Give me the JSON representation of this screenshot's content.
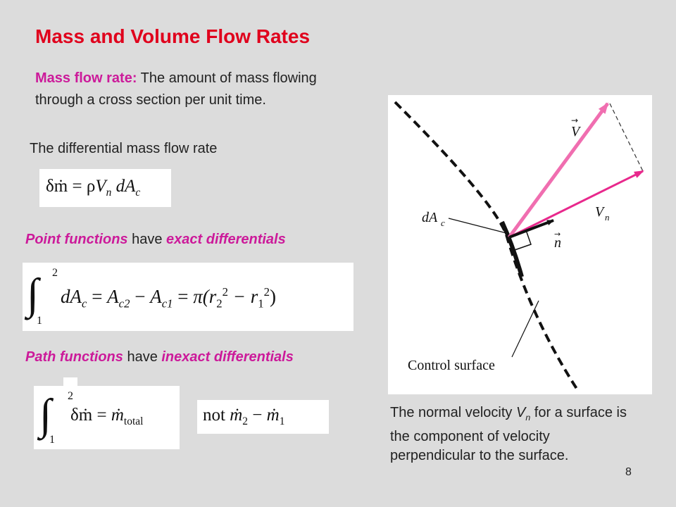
{
  "slide": {
    "title": "Mass and Volume Flow Rates",
    "intro_term": "Mass flow rate:",
    "intro_line1_rest": " The amount of mass flowing",
    "intro_line2": "through a cross section per unit time.",
    "differential_label": "The differential mass flow rate",
    "point_term1": "Point functions",
    "point_mid": " have ",
    "point_term2": "exact differentials",
    "path_term1": "Path functions",
    "path_mid": " have ",
    "path_term2": "inexact differentials",
    "note_part1": "The normal velocity ",
    "note_sym": "V",
    "note_sub": "n",
    "note_part2": " for a surface is the component of velocity perpendicular to the surface.",
    "page_number": "8"
  },
  "equations": {
    "eq1_lhs": "δṁ",
    "eq1_eq": "=",
    "eq1_rho": "ρ",
    "eq1_V": "V",
    "eq1_Vsub": "n",
    "eq1_dA": "dA",
    "eq1_dAsub": "c",
    "eq2_lower": "1",
    "eq2_upper": "2",
    "eq2_dA": "dA",
    "eq2_dAsub": "c",
    "eq2_eq1": "=",
    "eq2_A1": "A",
    "eq2_A1sub": "c2",
    "eq2_minus": "−",
    "eq2_A2": "A",
    "eq2_A2sub": "c1",
    "eq2_eq2": "=",
    "eq2_pi": "π(r",
    "eq2_r2sub": "2",
    "eq2_r2sup": "2",
    "eq2_minus2": " − r",
    "eq2_r1sub": "1",
    "eq2_r1sup": "2",
    "eq2_close": ")",
    "eq3_lower": "1",
    "eq3_upper": "2",
    "eq3_lhs": "δṁ",
    "eq3_eq": "=",
    "eq3_mdot": "ṁ",
    "eq3_sub": "total",
    "eq4_not": "not",
    "eq4_m2": "ṁ",
    "eq4_m2sub": "2",
    "eq4_minus": "−",
    "eq4_m1": "ṁ",
    "eq4_m1sub": "1"
  },
  "figure": {
    "label_V": "V",
    "label_Vn": "V",
    "label_Vn_sub": "n",
    "label_n": "n",
    "label_dA": "dA",
    "label_dA_sub": "c",
    "label_control_surface": "Control surface",
    "colors": {
      "velocity_arrow": "#f06eb0",
      "normal_velocity_arrow": "#e8288c",
      "normal_arrow": "#111111",
      "surface": "#111111"
    }
  },
  "colors": {
    "title": "#e0001c",
    "accent": "#cc1a9a",
    "background": "#dcdcdc"
  }
}
